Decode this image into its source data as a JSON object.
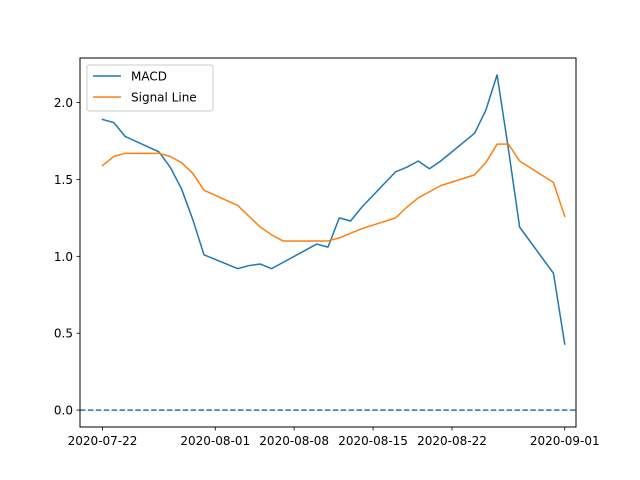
{
  "chart_data": {
    "type": "line",
    "x": [
      "2020-07-22",
      "2020-07-23",
      "2020-07-24",
      "2020-07-27",
      "2020-07-28",
      "2020-07-29",
      "2020-07-30",
      "2020-07-31",
      "2020-08-03",
      "2020-08-04",
      "2020-08-05",
      "2020-08-06",
      "2020-08-07",
      "2020-08-10",
      "2020-08-11",
      "2020-08-12",
      "2020-08-13",
      "2020-08-14",
      "2020-08-17",
      "2020-08-18",
      "2020-08-19",
      "2020-08-20",
      "2020-08-21",
      "2020-08-24",
      "2020-08-25",
      "2020-08-26",
      "2020-08-27",
      "2020-08-28",
      "2020-08-31",
      "2020-09-01"
    ],
    "series": [
      {
        "name": "MACD",
        "color": "#1f77b4",
        "values": [
          1.89,
          1.87,
          1.78,
          1.68,
          1.58,
          1.44,
          1.24,
          1.01,
          0.92,
          0.94,
          0.95,
          0.92,
          0.96,
          1.08,
          1.06,
          1.25,
          1.23,
          1.32,
          1.55,
          1.58,
          1.62,
          1.57,
          1.62,
          1.8,
          1.95,
          2.18,
          1.7,
          1.19,
          0.89,
          0.43
        ]
      },
      {
        "name": "Signal Line",
        "color": "#ff7f0e",
        "values": [
          1.59,
          1.65,
          1.67,
          1.67,
          1.65,
          1.61,
          1.54,
          1.43,
          1.33,
          1.26,
          1.19,
          1.14,
          1.1,
          1.1,
          1.1,
          1.12,
          1.15,
          1.18,
          1.25,
          1.32,
          1.38,
          1.42,
          1.46,
          1.53,
          1.61,
          1.73,
          1.73,
          1.62,
          1.48,
          1.26
        ]
      }
    ],
    "reference_line": {
      "y": 0.0,
      "color": "#1f77b4",
      "style": "dashed"
    },
    "x_ticks": [
      "2020-07-22",
      "2020-08-01",
      "2020-08-08",
      "2020-08-15",
      "2020-08-22",
      "2020-09-01"
    ],
    "y_ticks": [
      "0.0",
      "0.5",
      "1.0",
      "1.5",
      "2.0"
    ],
    "y_tick_values": [
      0.0,
      0.5,
      1.0,
      1.5,
      2.0
    ],
    "xlim": [
      "2020-07-20",
      "2020-09-02"
    ],
    "ylim": [
      -0.11,
      2.29
    ],
    "title": "",
    "xlabel": "",
    "ylabel": "",
    "grid": false,
    "legend": "top-left"
  }
}
